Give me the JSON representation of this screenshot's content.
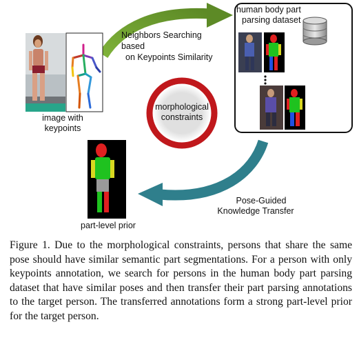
{
  "labels": {
    "image_with_keypoints": [
      "image with",
      "keypoints"
    ],
    "dataset_title": [
      "human body part",
      "parsing dataset"
    ],
    "neighbors_search": [
      "Neighbors Searching based",
      "on Keypoints Similarity"
    ],
    "morphological": [
      "morphological",
      "constraints"
    ],
    "pose_guided": [
      "Pose-Guided",
      "Knowledge Transfer"
    ],
    "part_prior": "part-level prior"
  },
  "caption": "Figure 1. Due to the morphological constraints, persons that share the same pose should have similar semantic part segmentations. For a person with only keypoints annotation, we search for persons in the human body part parsing dataset that have similar poses and then transfer their part parsing annotations to the target person. The transferred annotations form a strong part-level prior for the target person.",
  "icons": [
    "database-icon",
    "ellipsis-icon"
  ],
  "colors": {
    "green_arrow": "#6c9a2e",
    "teal_arrow": "#2f7f8c",
    "ring": "#c0181c",
    "part_green": "#1fc21f",
    "part_red": "#e02020"
  }
}
